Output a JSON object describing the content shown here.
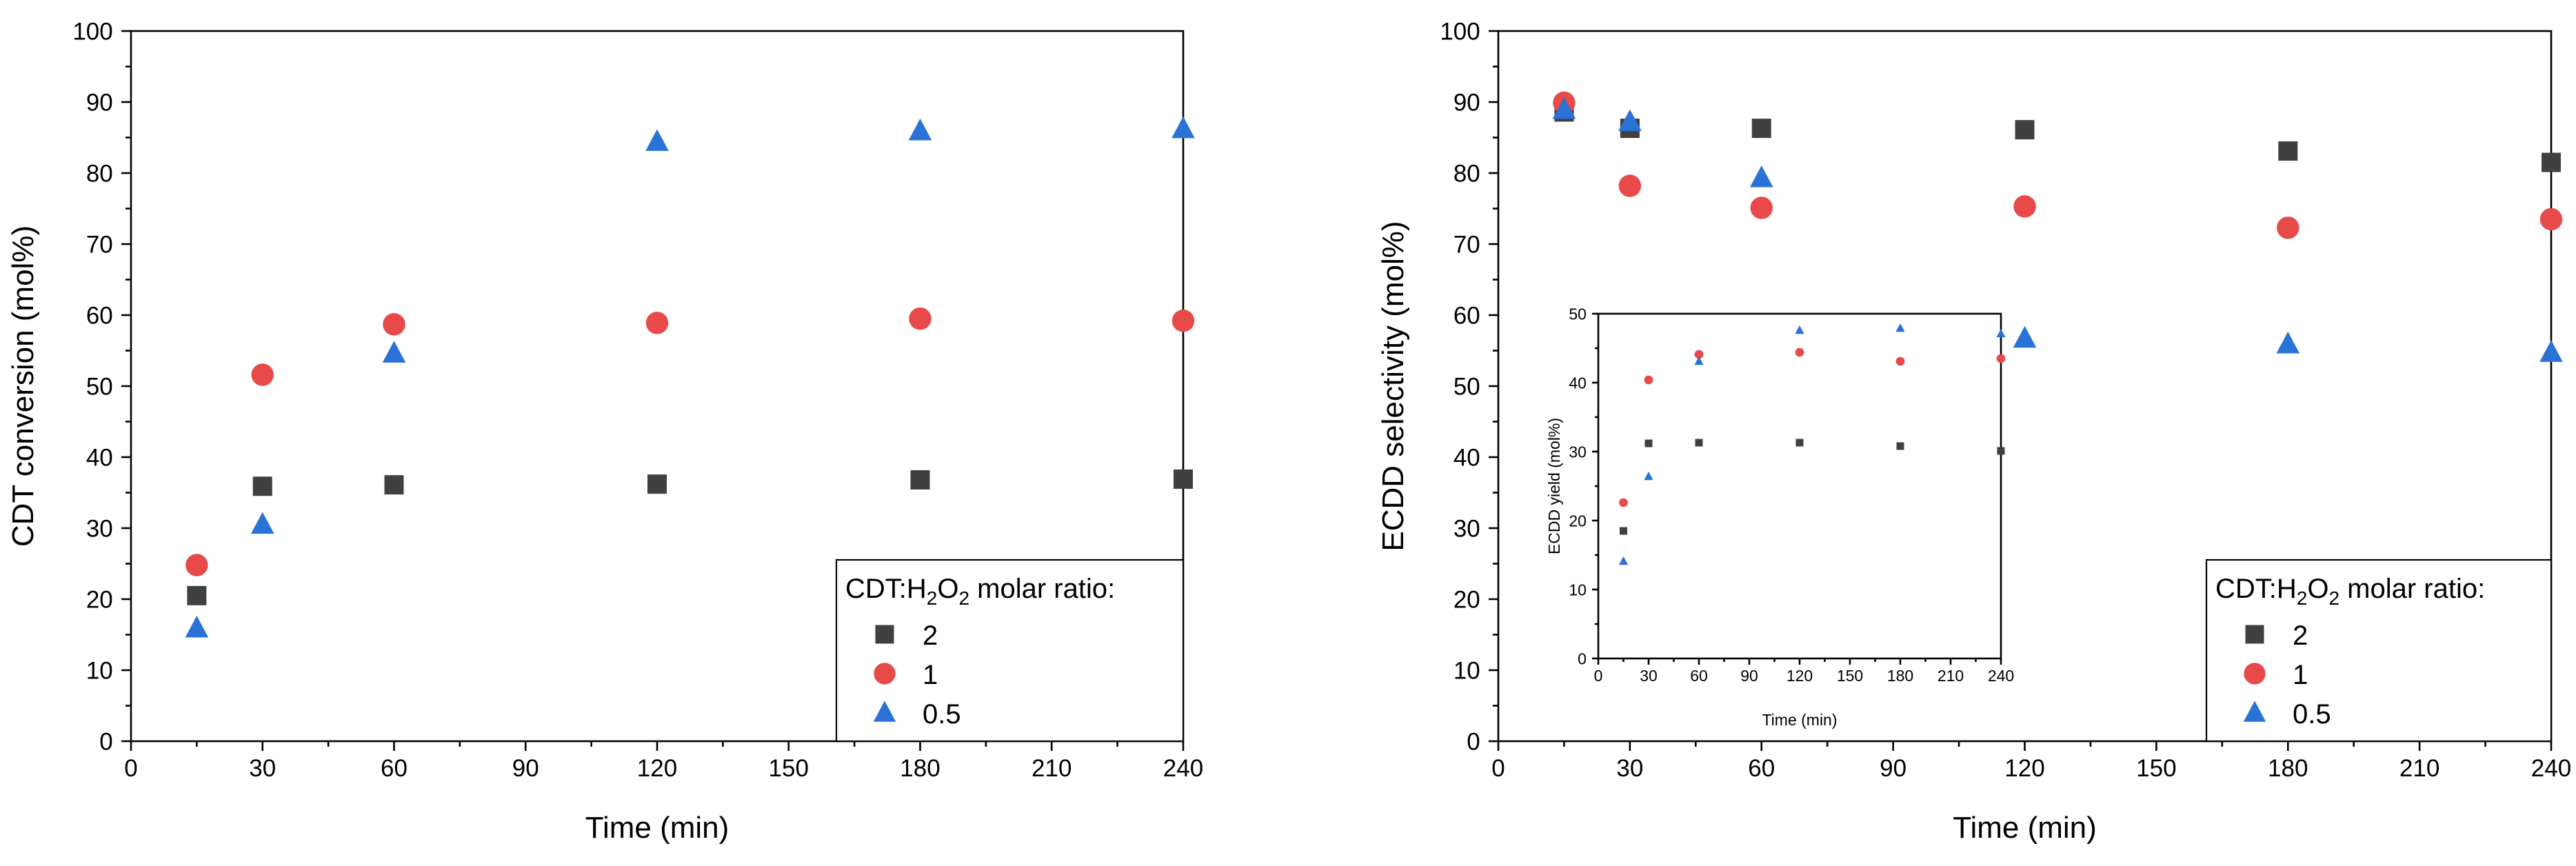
{
  "colors": {
    "series_2": "#404040",
    "series_1": "#e84a4a",
    "series_0_5": "#2a72d6"
  },
  "chart_data": [
    {
      "id": "left",
      "type": "scatter",
      "title": "",
      "xlabel": "Time (min)",
      "ylabel": "CDT conversion (mol%)",
      "xlim": [
        0,
        240
      ],
      "ylim": [
        0,
        100
      ],
      "xticks": [
        "0",
        "30",
        "60",
        "90",
        "120",
        "150",
        "180",
        "210",
        "240"
      ],
      "yticks": [
        "0",
        "10",
        "20",
        "30",
        "40",
        "50",
        "60",
        "70",
        "80",
        "90",
        "100"
      ],
      "legend": {
        "placement": "bottom-right",
        "title_prefix": "CDT:H",
        "title_sub1": "2",
        "title_mid": "O",
        "title_sub2": "2",
        "title_suffix": " molar ratio:",
        "entries": [
          "2",
          "1",
          "0.5"
        ]
      },
      "series": [
        {
          "name": "2",
          "marker": "square",
          "x": [
            15,
            30,
            60,
            120,
            180,
            240
          ],
          "y": [
            20.5,
            35.9,
            36.1,
            36.2,
            36.8,
            36.9
          ]
        },
        {
          "name": "1",
          "marker": "circle",
          "x": [
            15,
            30,
            60,
            120,
            180,
            240
          ],
          "y": [
            24.8,
            51.6,
            58.7,
            58.9,
            59.5,
            59.2
          ]
        },
        {
          "name": "0.5",
          "marker": "triangle",
          "x": [
            15,
            30,
            60,
            120,
            180,
            240
          ],
          "y": [
            15.9,
            30.5,
            54.6,
            84.4,
            85.9,
            86.2
          ]
        }
      ]
    },
    {
      "id": "right",
      "type": "scatter",
      "title": "",
      "xlabel": "Time (min)",
      "ylabel": "ECDD selectivity (mol%)",
      "xlim": [
        0,
        240
      ],
      "ylim": [
        0,
        100
      ],
      "xticks": [
        "0",
        "30",
        "60",
        "90",
        "120",
        "150",
        "180",
        "210",
        "240"
      ],
      "yticks": [
        "0",
        "10",
        "20",
        "30",
        "40",
        "50",
        "60",
        "70",
        "80",
        "90",
        "100"
      ],
      "legend": {
        "placement": "bottom-right",
        "title_prefix": "CDT:H",
        "title_sub1": "2",
        "title_mid": "O",
        "title_sub2": "2",
        "title_suffix": " molar ratio:",
        "entries": [
          "2",
          "1",
          "0.5"
        ]
      },
      "series": [
        {
          "name": "2",
          "marker": "square",
          "x": [
            15,
            30,
            60,
            120,
            180,
            240
          ],
          "y": [
            88.6,
            86.3,
            86.3,
            86.1,
            83.1,
            81.5
          ]
        },
        {
          "name": "1",
          "marker": "circle",
          "x": [
            15,
            30,
            60,
            120,
            180,
            240
          ],
          "y": [
            89.9,
            78.2,
            75.1,
            75.3,
            72.3,
            73.5
          ]
        },
        {
          "name": "0.5",
          "marker": "triangle",
          "x": [
            15,
            30,
            60,
            120,
            180,
            240
          ],
          "y": [
            88.9,
            87.2,
            79.3,
            56.7,
            55.9,
            54.7
          ]
        }
      ]
    },
    {
      "id": "inset",
      "type": "scatter",
      "title": "",
      "xlabel": "Time (min)",
      "ylabel": "ECDD yield (mol%)",
      "xlim": [
        0,
        240
      ],
      "ylim": [
        0,
        50
      ],
      "xticks": [
        "0",
        "30",
        "60",
        "90",
        "120",
        "150",
        "180",
        "210",
        "240"
      ],
      "yticks": [
        "0",
        "10",
        "20",
        "30",
        "40",
        "50"
      ],
      "series": [
        {
          "name": "2",
          "marker": "square",
          "x": [
            15,
            30,
            60,
            120,
            180,
            240
          ],
          "y": [
            18.5,
            31.2,
            31.3,
            31.3,
            30.8,
            30.1
          ]
        },
        {
          "name": "1",
          "marker": "circle",
          "x": [
            15,
            30,
            60,
            120,
            180,
            240
          ],
          "y": [
            22.6,
            40.4,
            44.1,
            44.4,
            43.1,
            43.5
          ]
        },
        {
          "name": "0.5",
          "marker": "triangle",
          "x": [
            15,
            30,
            60,
            120,
            180,
            240
          ],
          "y": [
            14.1,
            26.4,
            43.1,
            47.6,
            47.9,
            47.1
          ]
        }
      ]
    }
  ]
}
